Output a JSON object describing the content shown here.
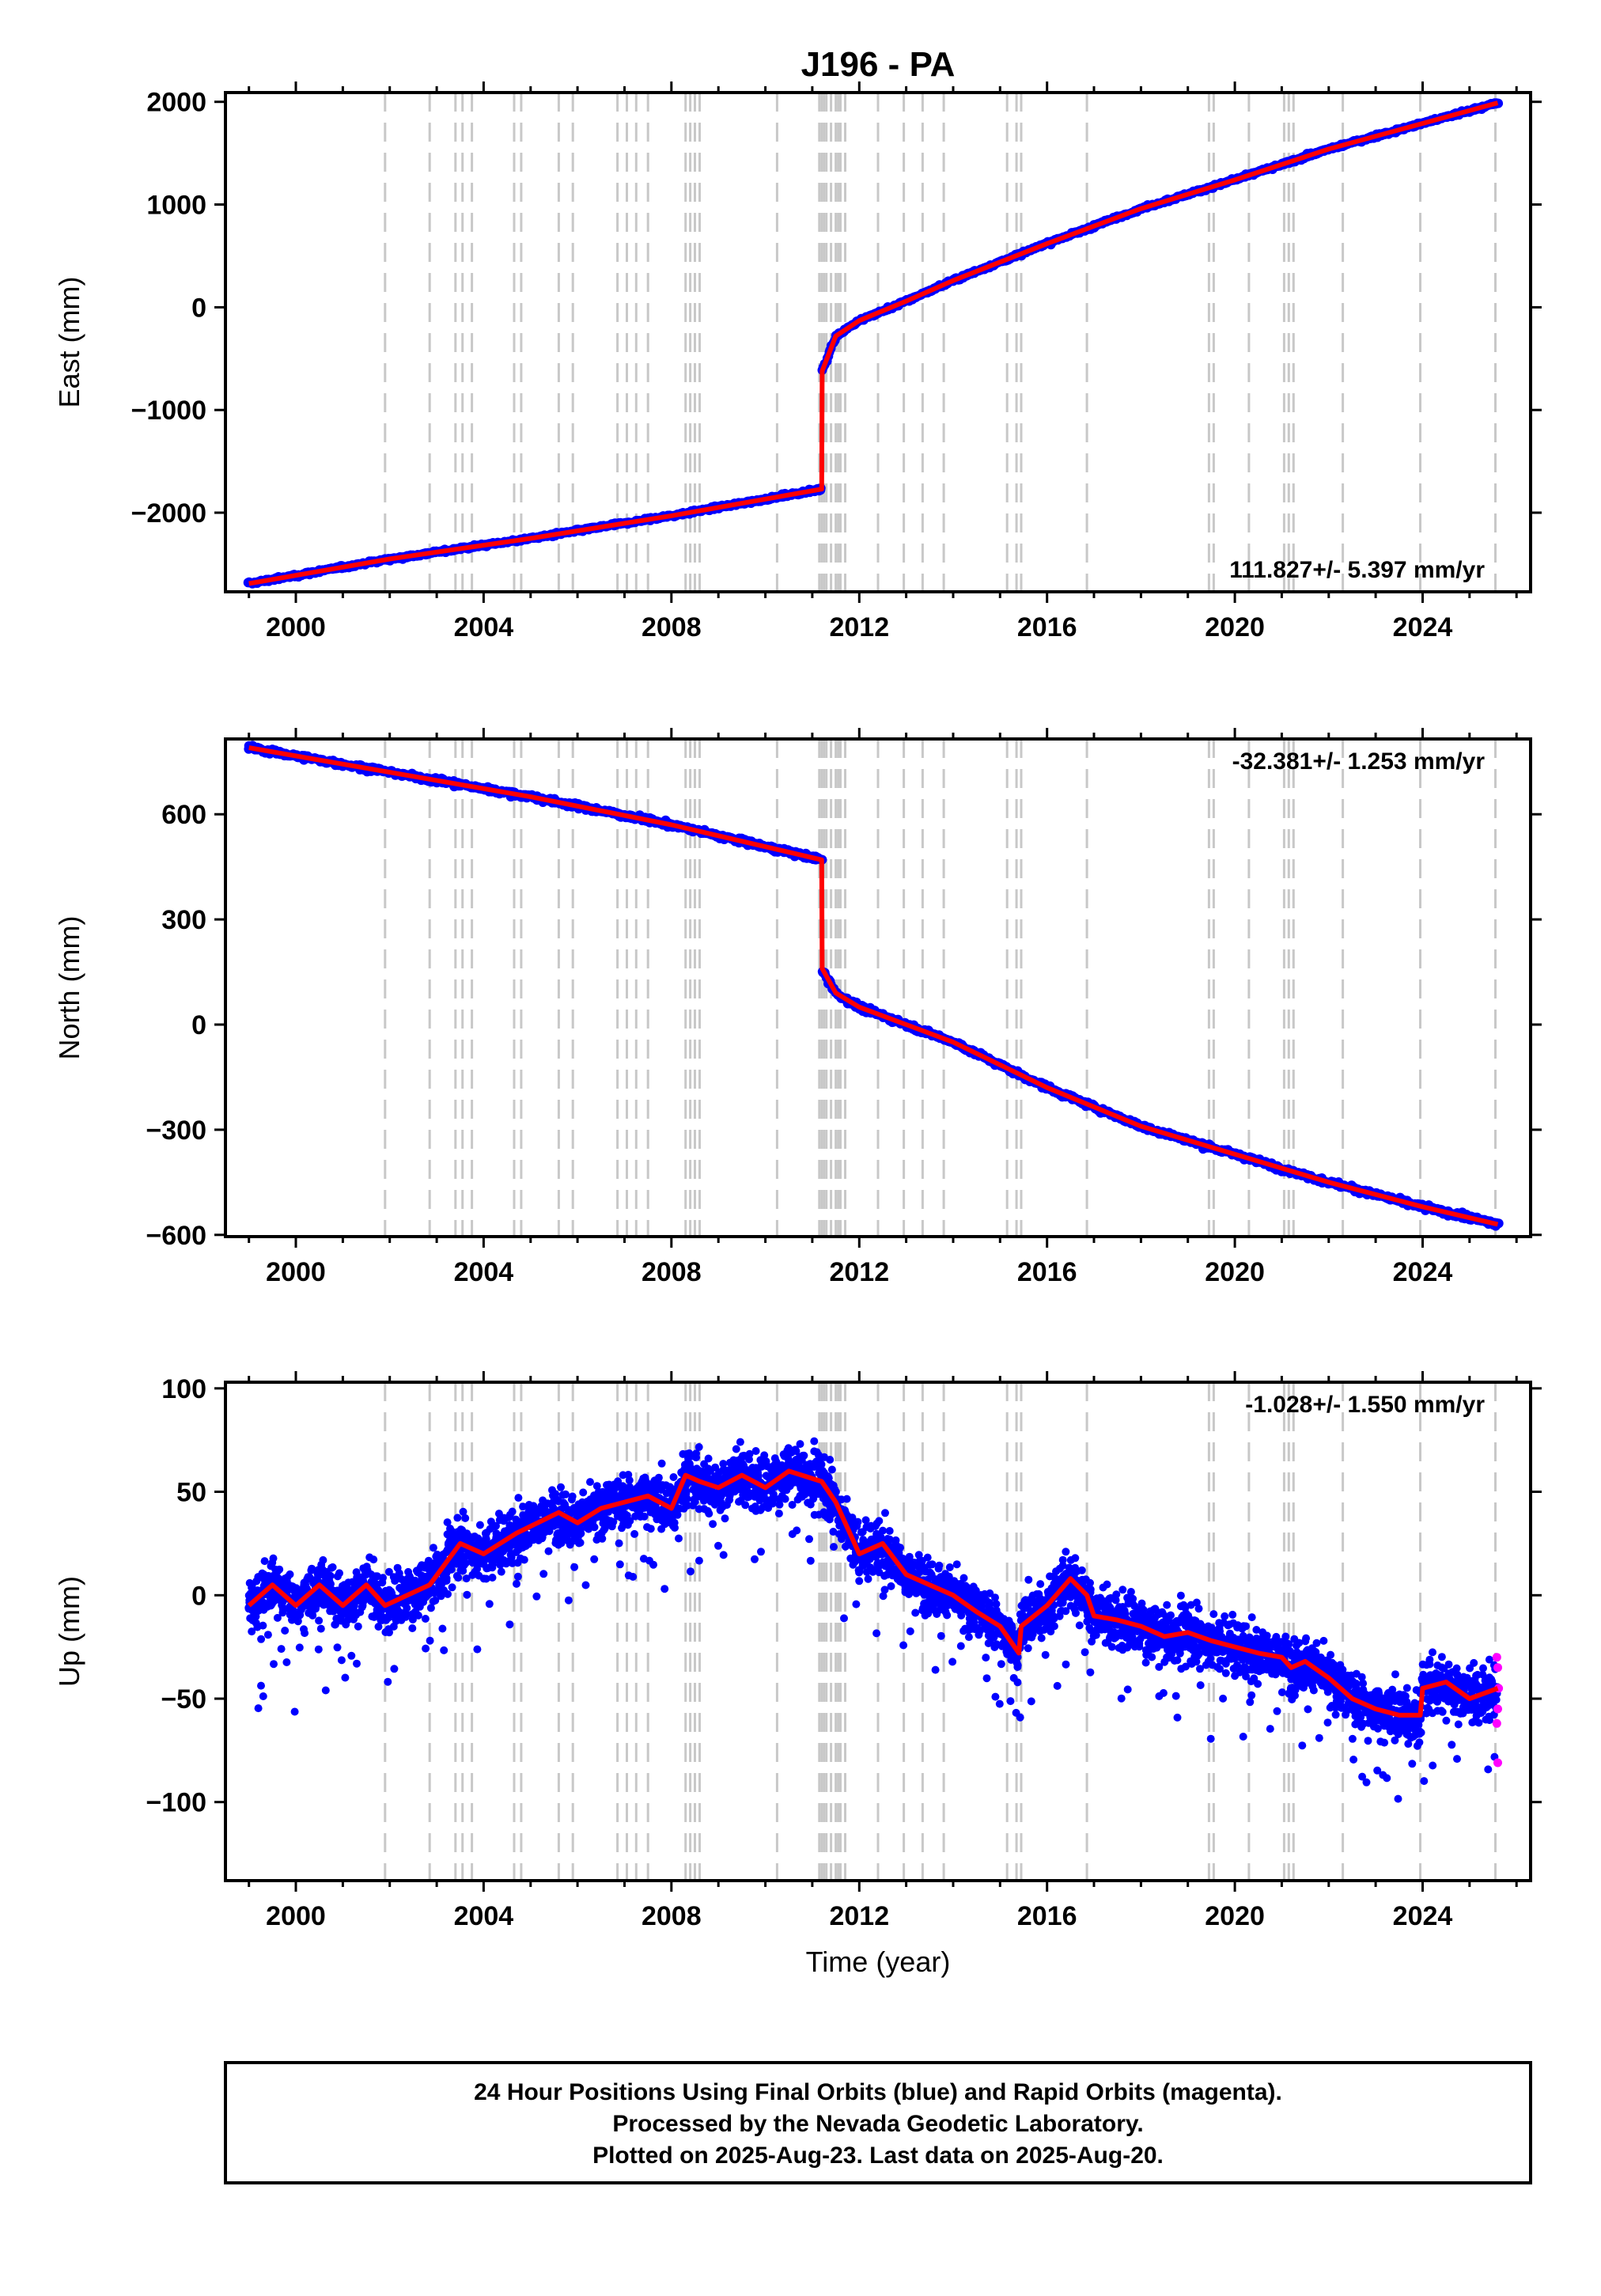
{
  "chart_data": {
    "type": "scatter",
    "title": "J196 - PA",
    "xlabel": "Time (year)",
    "xlim": [
      1998.5,
      2026.3
    ],
    "xticks": [
      2000,
      2004,
      2008,
      2012,
      2016,
      2020,
      2024
    ],
    "event_lines": [
      2001.9,
      2002.85,
      2003.4,
      2003.55,
      2003.75,
      2004.65,
      2004.8,
      2005.6,
      2005.9,
      2006.85,
      2007.05,
      2007.25,
      2007.5,
      2008.3,
      2008.4,
      2008.5,
      2008.6,
      2010.25,
      2011.15,
      2011.2,
      2011.25,
      2011.3,
      2011.4,
      2011.5,
      2011.55,
      2011.6,
      2011.7,
      2012.4,
      2012.95,
      2013.35,
      2013.8,
      2015.15,
      2015.35,
      2015.45,
      2016.85,
      2019.45,
      2019.55,
      2020.3,
      2021.05,
      2021.15,
      2021.25,
      2022.3,
      2023.95,
      2025.55
    ],
    "subplots": [
      {
        "name": "east",
        "ylabel": "East (mm)",
        "ylim": [
          -2770,
          2090
        ],
        "yticks": [
          -2000,
          -1000,
          0,
          1000,
          2000
        ],
        "rate_label": "111.827+/- 5.397 mm/yr",
        "rate_position": "bottom-right",
        "model": [
          [
            1999.0,
            -2690
          ],
          [
            2002.0,
            -2450
          ],
          [
            2005.0,
            -2250
          ],
          [
            2008.0,
            -2030
          ],
          [
            2011.2,
            -1770
          ],
          [
            2011.21,
            -620
          ],
          [
            2011.5,
            -280
          ],
          [
            2012.0,
            -130
          ],
          [
            2013.0,
            60
          ],
          [
            2014.0,
            260
          ],
          [
            2016.0,
            620
          ],
          [
            2018.0,
            960
          ],
          [
            2020.0,
            1240
          ],
          [
            2022.0,
            1540
          ],
          [
            2024.0,
            1790
          ],
          [
            2025.6,
            1990
          ]
        ]
      },
      {
        "name": "north",
        "ylabel": "North (mm)",
        "ylim": [
          -605,
          815
        ],
        "yticks": [
          -600,
          -300,
          0,
          300,
          600
        ],
        "rate_label": "-32.381+/- 1.253 mm/yr",
        "rate_position": "top-right",
        "model": [
          [
            1999.0,
            790
          ],
          [
            2002.0,
            720
          ],
          [
            2005.0,
            650
          ],
          [
            2008.0,
            570
          ],
          [
            2011.2,
            470
          ],
          [
            2011.21,
            160
          ],
          [
            2011.5,
            90
          ],
          [
            2012.0,
            50
          ],
          [
            2013.0,
            0
          ],
          [
            2014.0,
            -50
          ],
          [
            2016.0,
            -180
          ],
          [
            2018.0,
            -290
          ],
          [
            2020.0,
            -370
          ],
          [
            2022.0,
            -450
          ],
          [
            2024.0,
            -520
          ],
          [
            2025.6,
            -570
          ]
        ]
      },
      {
        "name": "up",
        "ylabel": "Up (mm)",
        "ylim": [
          -138,
          103
        ],
        "yticks": [
          -100,
          -50,
          0,
          50,
          100
        ],
        "rate_label": "-1.028+/- 1.550 mm/yr",
        "rate_position": "top-right",
        "model": [
          [
            1999.0,
            -5
          ],
          [
            1999.5,
            5
          ],
          [
            2000.0,
            -5
          ],
          [
            2000.5,
            5
          ],
          [
            2001.0,
            -5
          ],
          [
            2001.5,
            5
          ],
          [
            2001.9,
            -5
          ],
          [
            2002.85,
            5
          ],
          [
            2003.5,
            25
          ],
          [
            2004.0,
            20
          ],
          [
            2004.7,
            30
          ],
          [
            2005.6,
            40
          ],
          [
            2006.0,
            35
          ],
          [
            2006.5,
            42
          ],
          [
            2007.0,
            45
          ],
          [
            2007.5,
            48
          ],
          [
            2008.0,
            42
          ],
          [
            2008.3,
            58
          ],
          [
            2008.6,
            55
          ],
          [
            2009.0,
            52
          ],
          [
            2009.5,
            58
          ],
          [
            2010.0,
            52
          ],
          [
            2010.5,
            60
          ],
          [
            2011.2,
            55
          ],
          [
            2011.5,
            45
          ],
          [
            2012.0,
            20
          ],
          [
            2012.5,
            25
          ],
          [
            2013.0,
            10
          ],
          [
            2013.5,
            5
          ],
          [
            2014.0,
            0
          ],
          [
            2014.5,
            -8
          ],
          [
            2015.0,
            -15
          ],
          [
            2015.4,
            -28
          ],
          [
            2015.45,
            -15
          ],
          [
            2016.0,
            -5
          ],
          [
            2016.5,
            8
          ],
          [
            2016.85,
            0
          ],
          [
            2017.0,
            -10
          ],
          [
            2017.5,
            -12
          ],
          [
            2018.0,
            -15
          ],
          [
            2018.5,
            -20
          ],
          [
            2019.0,
            -18
          ],
          [
            2019.5,
            -22
          ],
          [
            2020.0,
            -25
          ],
          [
            2020.5,
            -28
          ],
          [
            2021.0,
            -30
          ],
          [
            2021.2,
            -35
          ],
          [
            2021.5,
            -32
          ],
          [
            2022.0,
            -40
          ],
          [
            2022.5,
            -50
          ],
          [
            2023.0,
            -55
          ],
          [
            2023.5,
            -58
          ],
          [
            2023.95,
            -58
          ],
          [
            2024.0,
            -45
          ],
          [
            2024.5,
            -42
          ],
          [
            2025.0,
            -50
          ],
          [
            2025.6,
            -45
          ]
        ],
        "rapid_points": [
          [
            2025.58,
            -30
          ],
          [
            2025.6,
            -35
          ],
          [
            2025.62,
            -45
          ],
          [
            2025.6,
            -55
          ],
          [
            2025.58,
            -62
          ],
          [
            2025.6,
            -81
          ]
        ]
      }
    ]
  },
  "footer": {
    "line1": "24 Hour Positions Using Final Orbits (blue) and Rapid Orbits (magenta).",
    "line2": "Processed by the Nevada Geodetic Laboratory.",
    "line3": "Plotted on 2025-Aug-23. Last data on 2025-Aug-20."
  },
  "colors": {
    "final_orbit_points": "#0000ff",
    "rapid_orbit_points": "#ff00ff",
    "model_line": "#ff0000",
    "event_lines": "#c8c8c8"
  }
}
